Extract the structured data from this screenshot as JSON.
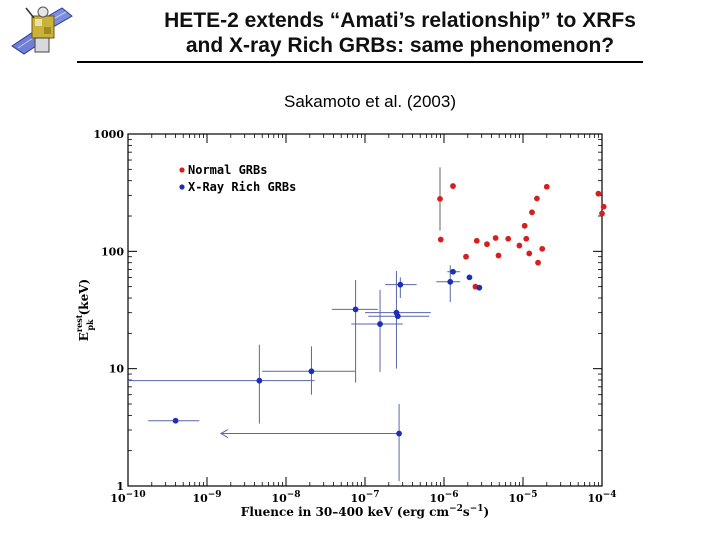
{
  "title_line1": "HETE-2 extends “Amati’s relationship” to XRFs",
  "title_line2": "and X-ray Rich GRBs: same phenomenon?",
  "subtitle": "Sakamoto et al. (2003)",
  "logo": {
    "icon": "hete-2-satellite-icon"
  },
  "colors": {
    "normal": "#d62020",
    "xrr": "#1c2fb8",
    "error_bars": "#5a66a8"
  },
  "chart_data": {
    "type": "scatter",
    "xscale": "log",
    "yscale": "log",
    "xlim": [
      1e-10,
      0.0001
    ],
    "ylim": [
      1,
      1000
    ],
    "xlabel_prefix": "Fluence in 30–400 keV (erg cm",
    "xlabel_exp1": "−2",
    "xlabel_mid": "s",
    "xlabel_exp2": "−1",
    "xlabel_suffix": ")",
    "ylabel_main": "E",
    "ylabel_sup": "rest",
    "ylabel_sub": "pk",
    "ylabel_unit": "(keV)",
    "x_ticks": [
      {
        "value": 1e-10,
        "base": "10",
        "exp": "−10"
      },
      {
        "value": 1e-09,
        "base": "10",
        "exp": "−9"
      },
      {
        "value": 1e-08,
        "base": "10",
        "exp": "−8"
      },
      {
        "value": 1e-07,
        "base": "10",
        "exp": "−7"
      },
      {
        "value": 1e-06,
        "base": "10",
        "exp": "−6"
      },
      {
        "value": 1e-05,
        "base": "10",
        "exp": "−5"
      },
      {
        "value": 0.0001,
        "base": "10",
        "exp": "−4"
      }
    ],
    "y_ticks": [
      {
        "value": 1,
        "label": "1"
      },
      {
        "value": 10,
        "label": "10"
      },
      {
        "value": 100,
        "label": "100"
      },
      {
        "value": 1000,
        "label": "1000"
      }
    ],
    "legend_position": "top-left",
    "series": [
      {
        "name": "Normal GRBs",
        "color": "#d62020",
        "points": [
          {
            "x": 8.9e-07,
            "y": 280,
            "ylo": 150,
            "yhi": 520
          },
          {
            "x": 1.3e-06,
            "y": 360
          },
          {
            "x": 9.1e-07,
            "y": 126
          },
          {
            "x": 2.6e-06,
            "y": 123
          },
          {
            "x": 3.5e-06,
            "y": 115
          },
          {
            "x": 4.5e-06,
            "y": 130
          },
          {
            "x": 4.9e-06,
            "y": 92
          },
          {
            "x": 6.5e-06,
            "y": 128
          },
          {
            "x": 9e-06,
            "y": 112
          },
          {
            "x": 1.05e-05,
            "y": 165
          },
          {
            "x": 1.1e-05,
            "y": 128
          },
          {
            "x": 1.2e-05,
            "y": 96
          },
          {
            "x": 1.3e-05,
            "y": 215
          },
          {
            "x": 1.5e-05,
            "y": 282
          },
          {
            "x": 1.75e-05,
            "y": 105
          },
          {
            "x": 2e-05,
            "y": 355
          },
          {
            "x": 1.55e-05,
            "y": 80
          },
          {
            "x": 1.9e-06,
            "y": 90
          },
          {
            "x": 2.5e-06,
            "y": 50
          },
          {
            "x": 9e-05,
            "y": 310
          },
          {
            "x": 0.0001,
            "y": 210
          },
          {
            "x": 0.000105,
            "y": 240
          }
        ]
      },
      {
        "name": "X-Ray Rich GRBs",
        "color": "#1c2fb8",
        "points": [
          {
            "x": 4e-10,
            "y": 3.6,
            "xlo": 1.8e-10,
            "xhi": 8e-10
          },
          {
            "x": 4.6e-09,
            "y": 7.9,
            "xlo": 1e-10,
            "xhi": 2.3e-08,
            "ylo": 3.4,
            "yhi": 16
          },
          {
            "x": 2.1e-08,
            "y": 9.5,
            "xlo": 5e-09,
            "xhi": 7.5e-08,
            "ylo": 6,
            "yhi": 15.5
          },
          {
            "x": 7.6e-08,
            "y": 32,
            "xlo": 3.8e-08,
            "xhi": 1.45e-07,
            "ylo": 7.6,
            "yhi": 57
          },
          {
            "x": 1.55e-07,
            "y": 24,
            "xlo": 6.7e-08,
            "xhi": 3e-07,
            "ylo": 9.4,
            "yhi": 47
          },
          {
            "x": 2.5e-07,
            "y": 30,
            "xlo": 1e-07,
            "xhi": 6.8e-07,
            "ylo": 10,
            "yhi": 68
          },
          {
            "x": 2.6e-07,
            "y": 28,
            "xlo": 1.1e-07,
            "xhi": 6.5e-07
          },
          {
            "x": 2.8e-07,
            "y": 52,
            "xlo": 1.8e-07,
            "xhi": 4.5e-07,
            "ylo": 40,
            "yhi": 60
          },
          {
            "x": 2.7e-07,
            "y": 2.8,
            "xupper": 1.5e-09,
            "ylo": 1.1,
            "yhi": 5
          },
          {
            "x": 1.2e-06,
            "y": 55,
            "xlo": 8e-07,
            "xhi": 1.6e-06,
            "ylo": 37,
            "yhi": 76
          },
          {
            "x": 1.3e-06,
            "y": 67,
            "xlo": 1.1e-06,
            "xhi": 1.6e-06
          },
          {
            "x": 2.1e-06,
            "y": 60
          },
          {
            "x": 2.8e-06,
            "y": 49
          }
        ]
      }
    ]
  }
}
